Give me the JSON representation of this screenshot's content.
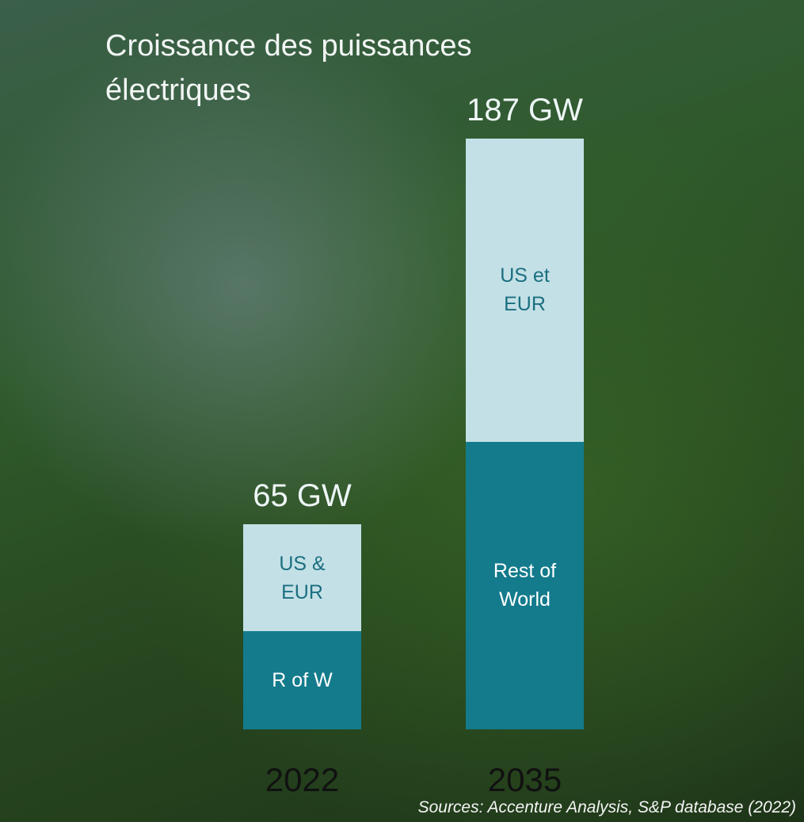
{
  "chart_data": {
    "type": "stacked-bar",
    "title": "Croissance des puissances électriques",
    "categories": [
      "2022",
      "2035"
    ],
    "series": [
      {
        "labels": [
          "R of W",
          "Rest of World"
        ],
        "color": "#137b8c",
        "text_color": "#ffffff",
        "values": [
          31,
          91
        ]
      },
      {
        "labels": [
          "US & EUR",
          "US et EUR"
        ],
        "color": "#c3e0e6",
        "text_color": "#1b6f80",
        "values": [
          34,
          96
        ]
      }
    ],
    "totals": {
      "values": [
        65,
        187
      ],
      "value_labels": [
        "65 GW",
        "187 GW"
      ]
    },
    "ylim": [
      0,
      187
    ],
    "source": "Sources: Accenture Analysis, S&P database (2022)"
  }
}
